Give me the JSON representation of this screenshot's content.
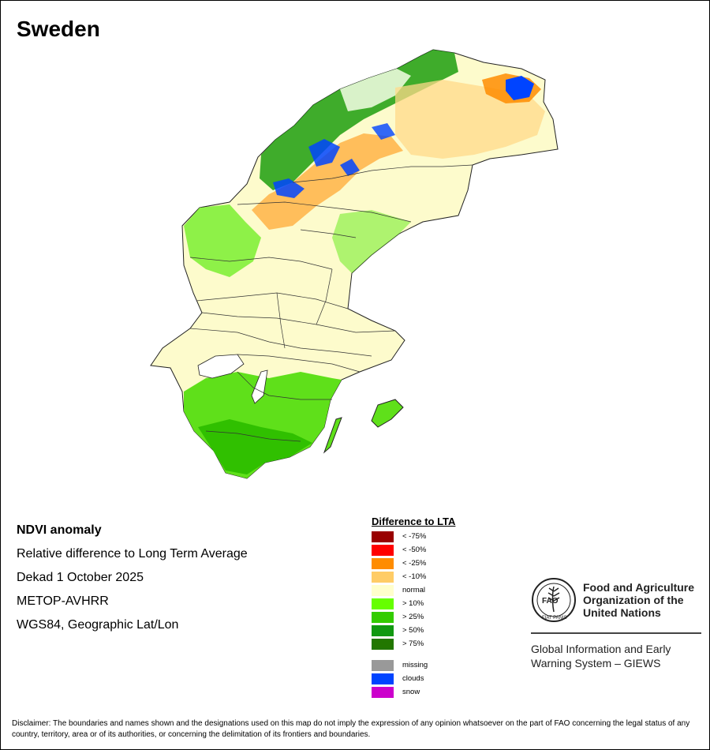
{
  "title": "Sweden",
  "info": {
    "product": "NDVI anomaly",
    "description": "Relative difference to Long Term Average",
    "period": "Dekad 1 October 2025",
    "sensor": "METOP-AVHRR",
    "projection": "WGS84, Geographic Lat/Lon"
  },
  "legend": {
    "title": "Difference to LTA",
    "classes": [
      {
        "label": "< -75%",
        "color": "#990000"
      },
      {
        "label": "< -50%",
        "color": "#ff0000"
      },
      {
        "label": "< -25%",
        "color": "#ff8c00"
      },
      {
        "label": "< -10%",
        "color": "#ffcc66"
      },
      {
        "label": "normal",
        "color": "#ffffcc"
      },
      {
        "label": "> 10%",
        "color": "#66ff00"
      },
      {
        "label": "> 25%",
        "color": "#33cc00"
      },
      {
        "label": "> 50%",
        "color": "#119911"
      },
      {
        "label": "> 75%",
        "color": "#227700"
      }
    ],
    "extras": [
      {
        "label": "missing",
        "color": "#999999"
      },
      {
        "label": "clouds",
        "color": "#0044ff"
      },
      {
        "label": "snow",
        "color": "#cc00cc"
      }
    ]
  },
  "org": {
    "logo_text": "FAO",
    "logo_motto": "FIAT PANIS",
    "name_line1": "Food and Agriculture",
    "name_line2": "Organization of the",
    "name_line3": "United Nations",
    "giews_line1": "Global Information and Early",
    "giews_line2": "Warning System – GIEWS"
  },
  "disclaimer": "Disclaimer: The boundaries and names shown and the designations used on this map do not imply the expression of any opinion whatsoever on the part of FAO concerning the legal status of any country, territory, area or of its authorities, or concerning the delimitation of its frontiers and boundaries."
}
